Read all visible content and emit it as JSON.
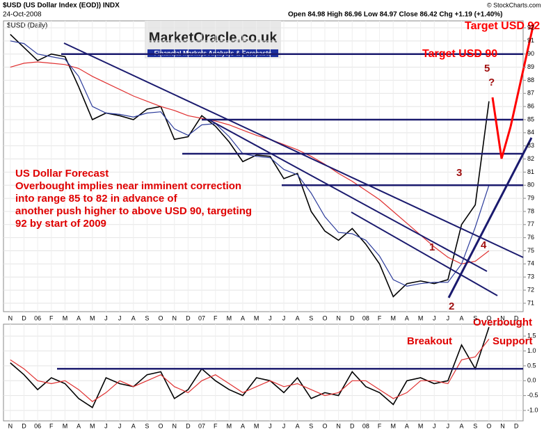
{
  "chart_data": [
    {
      "type": "line",
      "title": "$USD (US Dollar Index (EOD)) INDX",
      "date": "24-Oct-2008",
      "quote": "Open 84.98 High 86.96 Low 84.97 Close 86.42 Chg +1.19 (+1.40%)",
      "source": "© StockCharts.com",
      "ylabel": "$USD (Daily)",
      "logo": "MarketOracle.co.uk",
      "logo_subtitle": "Financial Markets Analysis & Forecasts",
      "annotations": [
        "US Dollar Forecast",
        "Overbought implies near imminent correction",
        "into range 85 to 82 in advance of",
        "another push higher to above USD 90, targeting",
        "92 by start of 2009",
        "Target USD 92",
        "Target USD 90",
        "5",
        "?",
        "3",
        "1",
        "2",
        "4"
      ],
      "categories": [
        "N",
        "D",
        "06",
        "F",
        "M",
        "A",
        "M",
        "J",
        "J",
        "A",
        "S",
        "O",
        "N",
        "D",
        "07",
        "F",
        "M",
        "A",
        "M",
        "J",
        "J",
        "A",
        "S",
        "O",
        "N",
        "D",
        "08",
        "F",
        "M",
        "A",
        "M",
        "J",
        "J",
        "A",
        "S",
        "O",
        "N",
        "D"
      ],
      "series": [
        {
          "color": "#000000",
          "values": [
            91.5,
            90.5,
            89.5,
            90.0,
            89.8,
            87.5,
            85.0,
            85.5,
            85.3,
            85.0,
            85.8,
            86.0,
            83.5,
            83.7,
            85.3,
            84.5,
            83.3,
            81.8,
            82.3,
            82.2,
            80.5,
            80.9,
            78.0,
            76.5,
            75.8,
            76.7,
            75.5,
            74.0,
            71.5,
            72.5,
            72.7,
            72.5,
            72.8,
            77.0,
            78.5,
            86.4,
            null,
            null
          ]
        },
        {
          "color": "#e03030",
          "values": [
            89.0,
            89.3,
            89.4,
            89.3,
            89.2,
            88.9,
            88.3,
            87.8,
            87.3,
            86.8,
            86.4,
            86.0,
            85.7,
            85.3,
            85.1,
            84.9,
            84.6,
            84.2,
            83.8,
            83.5,
            83.1,
            82.7,
            82.2,
            81.6,
            80.9,
            80.3,
            79.6,
            78.9,
            78.0,
            77.1,
            76.2,
            75.3,
            74.5,
            74.0,
            74.2,
            75.0,
            null,
            null
          ]
        },
        {
          "color": "#2a3a9a",
          "values": [
            91.0,
            90.8,
            90.0,
            89.8,
            89.6,
            88.3,
            86.0,
            85.5,
            85.4,
            85.2,
            85.5,
            85.6,
            84.3,
            83.8,
            84.6,
            84.7,
            83.7,
            82.4,
            82.2,
            82.1,
            81.2,
            80.8,
            79.4,
            77.6,
            76.4,
            76.3,
            75.8,
            74.6,
            72.8,
            72.3,
            72.5,
            72.6,
            72.6,
            74.0,
            76.8,
            80.0,
            null,
            null
          ]
        }
      ],
      "levels": [
        90,
        85,
        82.4,
        80
      ],
      "ylim": [
        70.36,
        92.53
      ],
      "yticks": [
        71,
        72,
        73,
        74,
        75,
        76,
        77,
        78,
        79,
        80,
        81,
        82,
        83,
        84,
        85,
        86,
        87,
        88,
        89,
        90,
        91,
        92
      ],
      "grid": true
    },
    {
      "type": "line",
      "annotations": [
        "Overbought",
        "Breakout",
        "Support"
      ],
      "series": [
        {
          "color": "#000000",
          "values": [
            0.6,
            0.2,
            -0.3,
            0.1,
            -0.1,
            -0.6,
            -0.9,
            0.1,
            -0.1,
            -0.2,
            0.2,
            0.3,
            -0.6,
            -0.3,
            0.4,
            0.0,
            -0.3,
            -0.5,
            0.1,
            0.0,
            -0.4,
            0.1,
            -0.6,
            -0.4,
            -0.5,
            0.3,
            -0.2,
            -0.4,
            -0.8,
            0.0,
            0.1,
            -0.1,
            0.0,
            1.2,
            0.4,
            1.8,
            null,
            null
          ]
        },
        {
          "color": "#e03030",
          "values": [
            0.7,
            0.4,
            0.0,
            -0.1,
            0.0,
            -0.3,
            -0.7,
            -0.4,
            0.0,
            -0.2,
            0.0,
            0.2,
            -0.2,
            -0.4,
            0.0,
            0.2,
            -0.1,
            -0.4,
            -0.2,
            0.0,
            -0.2,
            -0.1,
            -0.3,
            -0.5,
            -0.4,
            0.0,
            0.0,
            -0.3,
            -0.6,
            -0.4,
            0.0,
            0.0,
            -0.1,
            0.7,
            0.8,
            1.4,
            null,
            null
          ]
        }
      ],
      "levels": [
        0.4
      ],
      "ylim": [
        -1.35,
        1.9
      ],
      "yticks": [
        {
          "value": -1.0,
          "label": "-1.0"
        },
        {
          "value": -0.5,
          "label": "-0.5"
        },
        {
          "value": 0,
          "label": "0.0"
        },
        {
          "value": 0.5,
          "label": "0.5"
        },
        {
          "value": 1.0,
          "label": "1.0"
        },
        {
          "value": 1.5,
          "label": "1.5"
        }
      ],
      "grid": true
    }
  ]
}
